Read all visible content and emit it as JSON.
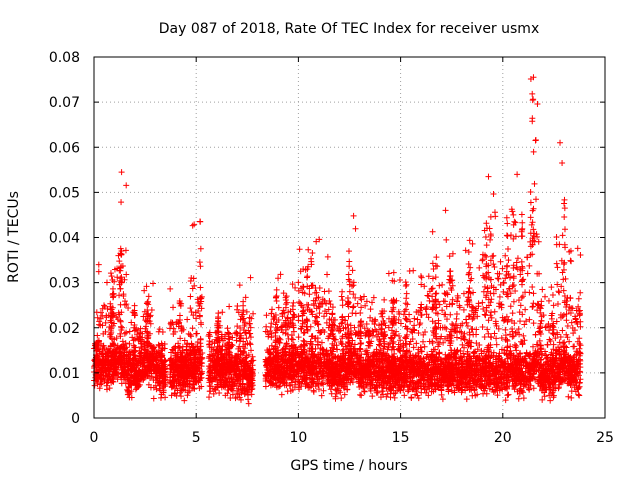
{
  "chart_data": {
    "type": "scatter",
    "title": "Day 087 of 2018, Rate Of TEC Index for receiver usmx",
    "xlabel": "GPS time / hours",
    "ylabel": "ROTI / TECUs",
    "xlim": [
      0,
      25
    ],
    "ylim": [
      0,
      0.08
    ],
    "x_ticks": [
      0,
      5,
      10,
      15,
      20,
      25
    ],
    "x_tick_labels": [
      "0",
      "5",
      "10",
      "15",
      "20",
      "25"
    ],
    "y_ticks": [
      0,
      0.01,
      0.02,
      0.03,
      0.04,
      0.05,
      0.06,
      0.07,
      0.08
    ],
    "y_tick_labels": [
      "0",
      "0.01",
      "0.02",
      "0.03",
      "0.04",
      "0.05",
      "0.06",
      "0.07",
      "0.08"
    ],
    "grid": true,
    "marker": "+",
    "color": "#ff0000",
    "segments": [
      {
        "x_start": 0.0,
        "x_end": 1.1,
        "y_base": 0.0115,
        "y_top": 0.034
      },
      {
        "x_start": 1.1,
        "x_end": 1.6,
        "y_base": 0.012,
        "y_top": 0.054
      },
      {
        "x_start": 1.6,
        "x_end": 2.4,
        "y_base": 0.01,
        "y_top": 0.026
      },
      {
        "x_start": 2.4,
        "x_end": 2.9,
        "y_base": 0.012,
        "y_top": 0.032
      },
      {
        "x_start": 2.9,
        "x_end": 3.5,
        "y_base": 0.01,
        "y_top": 0.021
      },
      {
        "x_start": 3.7,
        "x_end": 4.3,
        "y_base": 0.01,
        "y_top": 0.029
      },
      {
        "x_start": 4.3,
        "x_end": 4.7,
        "y_base": 0.009,
        "y_top": 0.022
      },
      {
        "x_start": 4.7,
        "x_end": 5.3,
        "y_base": 0.012,
        "y_top": 0.044
      },
      {
        "x_start": 5.6,
        "x_end": 7.0,
        "y_base": 0.01,
        "y_top": 0.025
      },
      {
        "x_start": 7.0,
        "x_end": 7.8,
        "y_base": 0.009,
        "y_top": 0.036
      },
      {
        "x_start": 8.4,
        "x_end": 10.0,
        "y_base": 0.011,
        "y_top": 0.034
      },
      {
        "x_start": 10.0,
        "x_end": 11.5,
        "y_base": 0.011,
        "y_top": 0.041
      },
      {
        "x_start": 11.5,
        "x_end": 12.4,
        "y_base": 0.01,
        "y_top": 0.03
      },
      {
        "x_start": 12.4,
        "x_end": 12.9,
        "y_base": 0.012,
        "y_top": 0.045
      },
      {
        "x_start": 12.9,
        "x_end": 14.0,
        "y_base": 0.01,
        "y_top": 0.03
      },
      {
        "x_start": 14.0,
        "x_end": 16.0,
        "y_base": 0.01,
        "y_top": 0.033
      },
      {
        "x_start": 16.0,
        "x_end": 17.5,
        "y_base": 0.01,
        "y_top": 0.046
      },
      {
        "x_start": 17.5,
        "x_end": 19.0,
        "y_base": 0.01,
        "y_top": 0.04
      },
      {
        "x_start": 19.0,
        "x_end": 20.5,
        "y_base": 0.01,
        "y_top": 0.054
      },
      {
        "x_start": 20.5,
        "x_end": 21.3,
        "y_base": 0.01,
        "y_top": 0.054
      },
      {
        "x_start": 21.3,
        "x_end": 21.8,
        "y_base": 0.012,
        "y_top": 0.0755
      },
      {
        "x_start": 21.8,
        "x_end": 22.6,
        "y_base": 0.009,
        "y_top": 0.033
      },
      {
        "x_start": 22.6,
        "x_end": 23.1,
        "y_base": 0.012,
        "y_top": 0.061
      },
      {
        "x_start": 23.1,
        "x_end": 23.8,
        "y_base": 0.01,
        "y_top": 0.038
      }
    ],
    "notable_points": [
      {
        "x": 21.5,
        "y": 0.0755
      },
      {
        "x": 21.6,
        "y": 0.0615
      },
      {
        "x": 22.8,
        "y": 0.061
      },
      {
        "x": 22.9,
        "y": 0.0565
      },
      {
        "x": 1.35,
        "y": 0.0545
      },
      {
        "x": 20.7,
        "y": 0.054
      },
      {
        "x": 19.3,
        "y": 0.0535
      },
      {
        "x": 12.7,
        "y": 0.0448
      },
      {
        "x": 5.2,
        "y": 0.0435
      },
      {
        "x": 17.2,
        "y": 0.046
      }
    ]
  }
}
